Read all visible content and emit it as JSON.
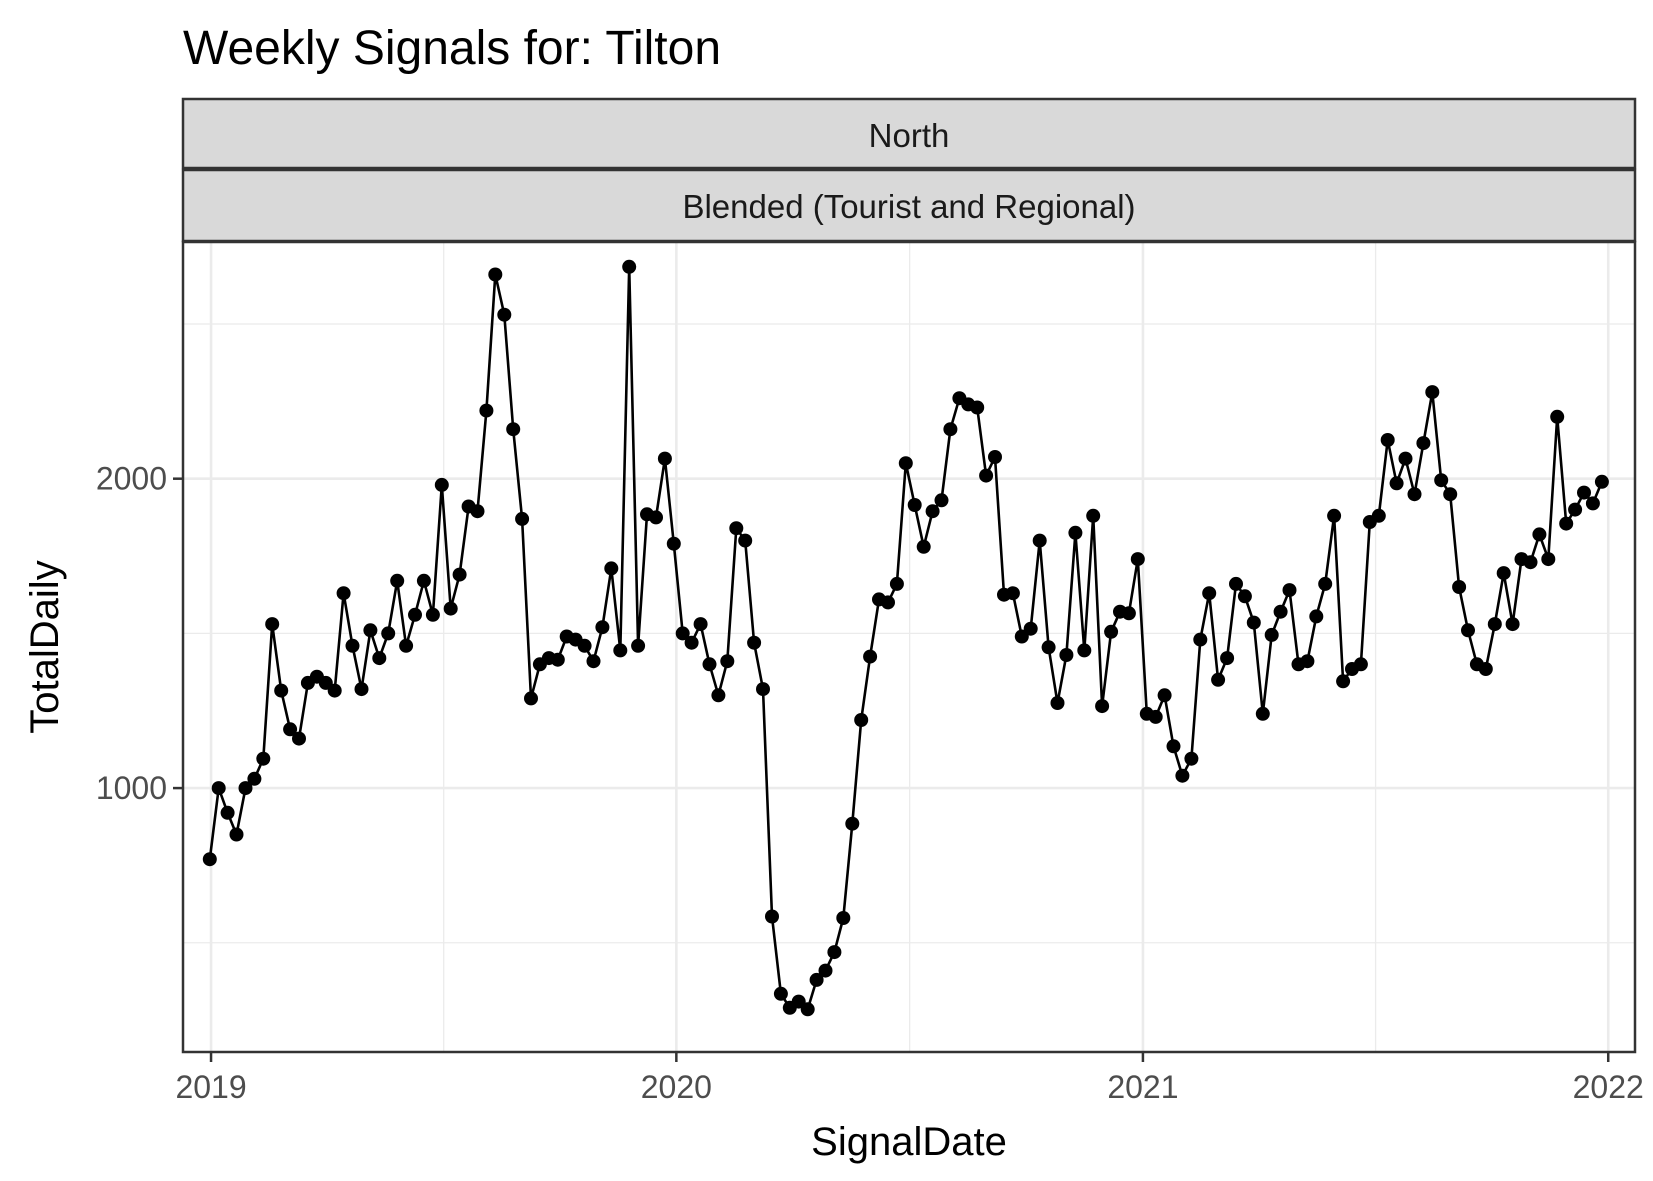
{
  "chart_data": {
    "type": "line",
    "title": "Weekly Signals for: Tilton",
    "facet_strips": [
      "North",
      "Blended (Tourist and Regional)"
    ],
    "xlabel": "SignalDate",
    "ylabel": "TotalDaily",
    "x_ticks": [
      "2019",
      "2020",
      "2021",
      "2022"
    ],
    "y_ticks": [
      1000,
      2000
    ],
    "xlim": [
      "2018-12-10",
      "2022-01-22"
    ],
    "ylim": [
      147,
      2765
    ],
    "grid": true,
    "legend": "none",
    "colors": {
      "line": "#000000",
      "points": "#000000",
      "grid": "#ebebeb",
      "strip_fill": "#d9d9d9",
      "border": "#333333"
    },
    "series": [
      {
        "x": [
          "2018-12-31",
          "2019-01-07",
          "2019-01-14",
          "2019-01-21",
          "2019-01-28",
          "2019-02-04",
          "2019-02-11",
          "2019-02-18",
          "2019-02-25",
          "2019-03-04",
          "2019-03-11",
          "2019-03-18",
          "2019-03-25",
          "2019-04-01",
          "2019-04-08",
          "2019-04-15",
          "2019-04-22",
          "2019-04-29",
          "2019-05-06",
          "2019-05-13",
          "2019-05-20",
          "2019-05-27",
          "2019-06-03",
          "2019-06-10",
          "2019-06-17",
          "2019-06-24",
          "2019-07-01",
          "2019-07-08",
          "2019-07-15",
          "2019-07-22",
          "2019-07-29",
          "2019-08-05",
          "2019-08-12",
          "2019-08-19",
          "2019-08-26",
          "2019-09-02",
          "2019-09-09",
          "2019-09-16",
          "2019-09-23",
          "2019-09-30",
          "2019-10-07",
          "2019-10-14",
          "2019-10-21",
          "2019-10-28",
          "2019-11-04",
          "2019-11-11",
          "2019-11-18",
          "2019-11-25",
          "2019-12-02",
          "2019-12-09",
          "2019-12-16",
          "2019-12-23",
          "2019-12-30",
          "2020-01-06",
          "2020-01-13",
          "2020-01-20",
          "2020-01-27",
          "2020-02-03",
          "2020-02-10",
          "2020-02-17",
          "2020-02-24",
          "2020-03-02",
          "2020-03-09",
          "2020-03-16",
          "2020-03-23",
          "2020-03-30",
          "2020-04-06",
          "2020-04-13",
          "2020-04-20",
          "2020-04-27",
          "2020-05-04",
          "2020-05-11",
          "2020-05-18",
          "2020-05-25",
          "2020-06-01",
          "2020-06-08",
          "2020-06-15",
          "2020-06-22",
          "2020-06-29",
          "2020-07-06",
          "2020-07-13",
          "2020-07-20",
          "2020-07-27",
          "2020-08-03",
          "2020-08-10",
          "2020-08-17",
          "2020-08-24",
          "2020-08-31",
          "2020-09-07",
          "2020-09-14",
          "2020-09-21",
          "2020-09-28",
          "2020-10-05",
          "2020-10-12",
          "2020-10-19",
          "2020-10-26",
          "2020-11-02",
          "2020-11-09",
          "2020-11-16",
          "2020-11-23",
          "2020-11-30",
          "2020-12-07",
          "2020-12-14",
          "2020-12-21",
          "2020-12-28",
          "2021-01-04",
          "2021-01-11",
          "2021-01-18",
          "2021-01-25",
          "2021-02-01",
          "2021-02-08",
          "2021-02-15",
          "2021-02-22",
          "2021-03-01",
          "2021-03-08",
          "2021-03-15",
          "2021-03-22",
          "2021-03-29",
          "2021-04-05",
          "2021-04-12",
          "2021-04-19",
          "2021-04-26",
          "2021-05-03",
          "2021-05-10",
          "2021-05-17",
          "2021-05-24",
          "2021-05-31",
          "2021-06-07",
          "2021-06-14",
          "2021-06-21",
          "2021-06-28",
          "2021-07-05",
          "2021-07-12",
          "2021-07-19",
          "2021-07-26",
          "2021-08-02",
          "2021-08-09",
          "2021-08-16",
          "2021-08-23",
          "2021-08-30",
          "2021-09-06",
          "2021-09-13",
          "2021-09-20",
          "2021-09-27",
          "2021-10-04",
          "2021-10-11",
          "2021-10-18",
          "2021-10-25",
          "2021-11-01",
          "2021-11-08",
          "2021-11-15",
          "2021-11-22",
          "2021-11-29",
          "2021-12-06",
          "2021-12-13",
          "2021-12-20",
          "2021-12-27"
        ],
        "values": [
          770,
          1000,
          920,
          850,
          1000,
          1030,
          1095,
          1530,
          1315,
          1190,
          1160,
          1340,
          1360,
          1340,
          1315,
          1630,
          1460,
          1320,
          1510,
          1420,
          1500,
          1670,
          1460,
          1560,
          1670,
          1560,
          1980,
          1580,
          1690,
          1910,
          1895,
          2220,
          2660,
          2530,
          2160,
          1870,
          1290,
          1400,
          1420,
          1415,
          1490,
          1480,
          1460,
          1410,
          1520,
          1710,
          1445,
          2685,
          1460,
          1885,
          1875,
          2065,
          1790,
          1500,
          1470,
          1530,
          1400,
          1300,
          1410,
          1840,
          1800,
          1470,
          1320,
          585,
          335,
          290,
          310,
          285,
          380,
          410,
          470,
          580,
          885,
          1220,
          1425,
          1610,
          1600,
          1660,
          2050,
          1915,
          1780,
          1895,
          1930,
          2160,
          2260,
          2240,
          2230,
          2010,
          2070,
          1625,
          1630,
          1490,
          1515,
          1800,
          1455,
          1275,
          1430,
          1825,
          1445,
          1880,
          1265,
          1505,
          1570,
          1565,
          1740,
          1240,
          1230,
          1300,
          1135,
          1040,
          1095,
          1480,
          1630,
          1350,
          1420,
          1660,
          1620,
          1535,
          1240,
          1495,
          1570,
          1640,
          1400,
          1410,
          1555,
          1660,
          1880,
          1345,
          1385,
          1400,
          1860,
          1880,
          2125,
          1985,
          2065,
          1950,
          2115,
          2280,
          1995,
          1950,
          1650,
          1510,
          1400,
          1385,
          1530,
          1695,
          1530,
          1740,
          1730,
          1820,
          1740,
          2200,
          1855,
          1900,
          1955,
          1920,
          1990
        ]
      }
    ]
  }
}
